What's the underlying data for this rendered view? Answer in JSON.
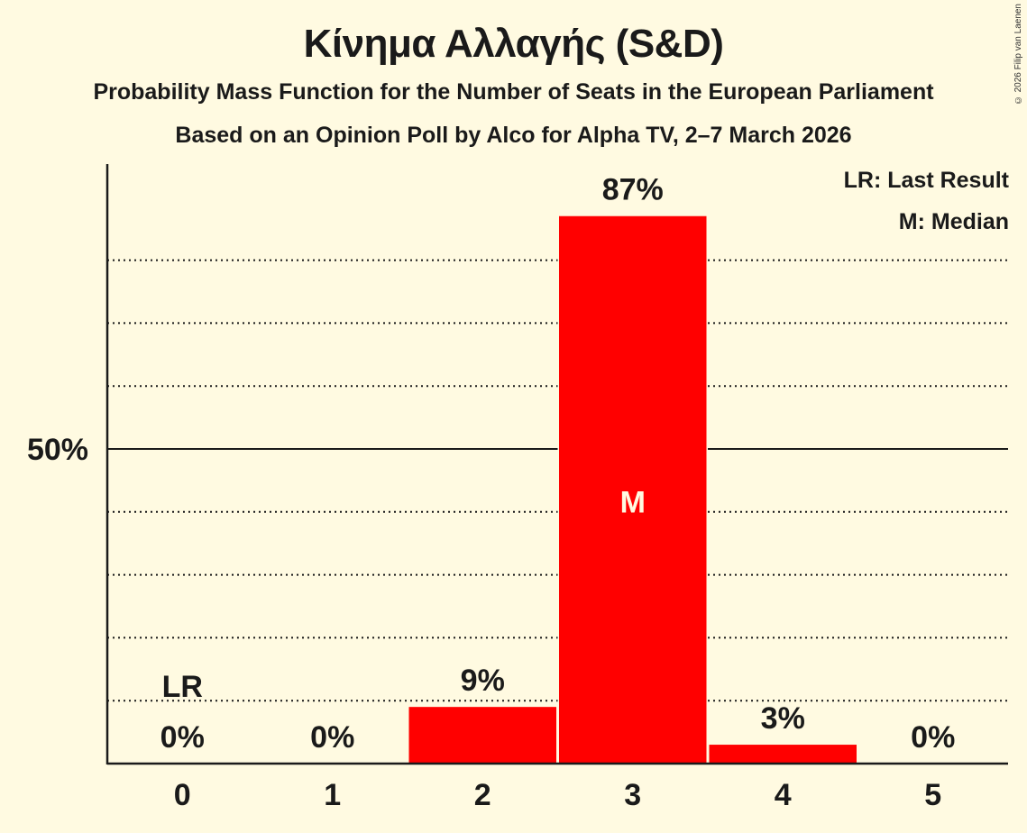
{
  "header": {
    "title": "Κίνημα Αλλαγής (S&D)",
    "subtitle": "Probability Mass Function for the Number of Seats in the European Parliament",
    "source": "Based on an Opinion Poll by Alco for Alpha TV, 2–7 March 2026",
    "copyright": "© 2026 Filip van Laenen"
  },
  "legend": {
    "last_result": "LR: Last Result",
    "median": "M: Median"
  },
  "colors": {
    "background": "#fffae1",
    "bar": "#ff0000",
    "text": "#1a1a1a",
    "median_label": "#fffae1"
  },
  "chart_data": {
    "type": "bar",
    "title": "Κίνημα Αλλαγής (S&D)",
    "subtitle": "Probability Mass Function for the Number of Seats in the European Parliament",
    "xlabel": "",
    "ylabel": "",
    "categories": [
      "0",
      "1",
      "2",
      "3",
      "4",
      "5"
    ],
    "values": [
      0,
      0,
      9,
      87,
      3,
      0
    ],
    "value_labels": [
      "0%",
      "0%",
      "9%",
      "87%",
      "3%",
      "0%"
    ],
    "unit": "%",
    "ylim": [
      0,
      100
    ],
    "y_tick_labels": [
      {
        "value": 50,
        "label": "50%"
      }
    ],
    "gridlines": {
      "major": [
        50
      ],
      "minor_dotted": [
        10,
        20,
        30,
        40,
        60,
        70,
        80
      ]
    },
    "annotations": [
      {
        "category": "0",
        "text": "LR",
        "meaning": "Last Result"
      },
      {
        "category": "3",
        "text": "M",
        "meaning": "Median"
      }
    ],
    "legend_position": "top-right"
  }
}
